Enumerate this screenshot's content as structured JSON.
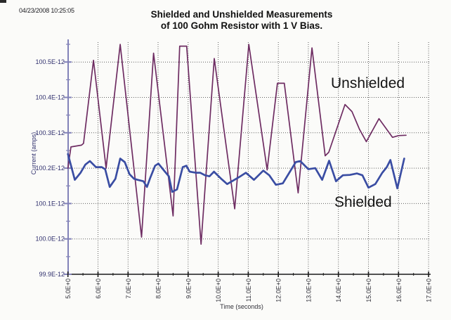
{
  "window": {
    "timestamp": "04/23/2008 10:25:05"
  },
  "title": {
    "line1": "Shielded and Unshielded Measurements",
    "line2": "of 100 Gohm Resistor with 1 V Bias."
  },
  "annotations": {
    "unshielded_label": "Unshielded",
    "shielded_label": "Shielded"
  },
  "colors": {
    "unshielded": "#6e2c62",
    "shielded": "#3a4da3",
    "y_axis": "#8282b8",
    "x_axis": "#1b1b1b",
    "grid": "#5f5f5f",
    "y_tick_label": "#30306e",
    "x_tick_label": "#32323a",
    "background": "#fbfbf9"
  },
  "chart_data": {
    "type": "line",
    "title": "Shielded and Unshielded Measurements of 100 Gohm Resistor with 1 V Bias.",
    "xlabel": "Time (seconds)",
    "ylabel": "Current (amps)",
    "xlim": [
      5.0,
      17.0
    ],
    "ylim_E-12": [
      99.9,
      100.55
    ],
    "y_unit": "amps, values in 1E-12",
    "grid": "dotted",
    "legend_position": "inline-annotations",
    "x_ticks": [
      "5.0E+0",
      "6.0E+0",
      "7.0E+0",
      "8.0E+0",
      "9.0E+0",
      "10.0E+0",
      "11.0E+0",
      "12.0E+0",
      "13.0E+0",
      "14.0E+0",
      "15.0E+0",
      "16.0E+0",
      "17.0E+0"
    ],
    "y_ticks": [
      "100.5E-12",
      "100.4E-12",
      "100.3E-12",
      "100.2E-12",
      "100.1E-12",
      "100.0E-12",
      "99.9E-12"
    ],
    "series": [
      {
        "name": "Unshielded",
        "color": "#6e2c62",
        "width": 1.7,
        "points_t_vE12": [
          [
            5.0,
            100.2
          ],
          [
            5.1,
            100.26
          ],
          [
            5.45,
            100.265
          ],
          [
            5.52,
            100.27
          ],
          [
            5.85,
            100.505
          ],
          [
            6.27,
            100.2
          ],
          [
            6.74,
            100.55
          ],
          [
            7.45,
            100.005
          ],
          [
            7.85,
            100.525
          ],
          [
            8.5,
            100.065
          ],
          [
            8.72,
            100.545
          ],
          [
            8.95,
            100.545
          ],
          [
            9.43,
            99.985
          ],
          [
            9.87,
            100.51
          ],
          [
            10.55,
            100.085
          ],
          [
            11.02,
            100.55
          ],
          [
            11.63,
            100.195
          ],
          [
            11.97,
            100.44
          ],
          [
            12.2,
            100.44
          ],
          [
            12.66,
            100.13
          ],
          [
            13.12,
            100.54
          ],
          [
            13.56,
            100.235
          ],
          [
            13.68,
            100.245
          ],
          [
            14.22,
            100.38
          ],
          [
            14.45,
            100.36
          ],
          [
            14.7,
            100.31
          ],
          [
            14.93,
            100.275
          ],
          [
            15.35,
            100.34
          ],
          [
            15.8,
            100.287
          ],
          [
            16.0,
            100.292
          ],
          [
            16.25,
            100.293
          ]
        ]
      },
      {
        "name": "Shielded",
        "color": "#3a4da3",
        "width": 2.7,
        "points_t_vE12": [
          [
            5.0,
            100.24
          ],
          [
            5.23,
            100.167
          ],
          [
            5.42,
            100.187
          ],
          [
            5.58,
            100.21
          ],
          [
            5.73,
            100.22
          ],
          [
            5.93,
            100.203
          ],
          [
            6.12,
            100.203
          ],
          [
            6.24,
            100.197
          ],
          [
            6.39,
            100.147
          ],
          [
            6.58,
            100.17
          ],
          [
            6.74,
            100.227
          ],
          [
            6.89,
            100.217
          ],
          [
            7.05,
            100.183
          ],
          [
            7.2,
            100.17
          ],
          [
            7.32,
            100.167
          ],
          [
            7.51,
            100.163
          ],
          [
            7.63,
            100.147
          ],
          [
            7.74,
            100.173
          ],
          [
            7.9,
            100.207
          ],
          [
            8.01,
            100.213
          ],
          [
            8.2,
            100.193
          ],
          [
            8.36,
            100.177
          ],
          [
            8.47,
            100.133
          ],
          [
            8.63,
            100.14
          ],
          [
            8.82,
            100.203
          ],
          [
            8.94,
            100.207
          ],
          [
            9.05,
            100.19
          ],
          [
            9.25,
            100.187
          ],
          [
            9.4,
            100.187
          ],
          [
            9.56,
            100.18
          ],
          [
            9.71,
            100.177
          ],
          [
            9.86,
            100.19
          ],
          [
            10.1,
            100.17
          ],
          [
            10.3,
            100.155
          ],
          [
            10.5,
            100.165
          ],
          [
            10.7,
            100.175
          ],
          [
            10.92,
            100.187
          ],
          [
            11.19,
            100.167
          ],
          [
            11.5,
            100.193
          ],
          [
            11.7,
            100.18
          ],
          [
            11.92,
            100.153
          ],
          [
            12.15,
            100.157
          ],
          [
            12.58,
            100.217
          ],
          [
            12.73,
            100.22
          ],
          [
            13.0,
            100.197
          ],
          [
            13.23,
            100.2
          ],
          [
            13.46,
            100.167
          ],
          [
            13.69,
            100.221
          ],
          [
            13.92,
            100.163
          ],
          [
            14.15,
            100.18
          ],
          [
            14.38,
            100.181
          ],
          [
            14.62,
            100.185
          ],
          [
            14.8,
            100.18
          ],
          [
            15.0,
            100.145
          ],
          [
            15.23,
            100.155
          ],
          [
            15.46,
            100.187
          ],
          [
            15.61,
            100.203
          ],
          [
            15.73,
            100.223
          ],
          [
            15.96,
            100.143
          ],
          [
            16.19,
            100.227
          ]
        ]
      }
    ]
  }
}
